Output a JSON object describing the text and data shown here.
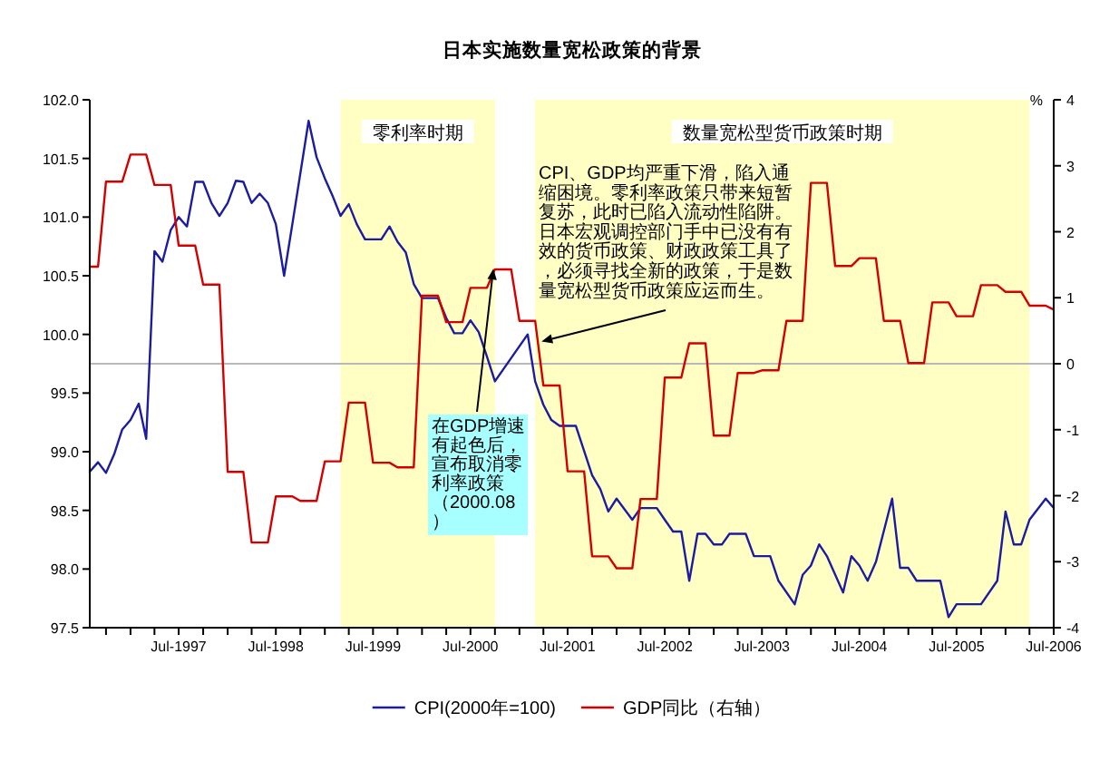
{
  "chart_data": {
    "type": "line",
    "title": "日本实施数量宽松政策的背景",
    "y2label": "%",
    "xlim": [
      "1996-08",
      "2006-07"
    ],
    "xticks": [
      {
        "value": "1996-10",
        "label": null
      },
      {
        "value": "1997-01",
        "label": null
      },
      {
        "value": "1997-04",
        "label": null
      },
      {
        "value": "1997-07",
        "label": "Jul-1997"
      },
      {
        "value": "1997-10",
        "label": null
      },
      {
        "value": "1998-01",
        "label": null
      },
      {
        "value": "1998-04",
        "label": null
      },
      {
        "value": "1998-07",
        "label": "Jul-1998"
      },
      {
        "value": "1998-10",
        "label": null
      },
      {
        "value": "1999-01",
        "label": null
      },
      {
        "value": "1999-04",
        "label": null
      },
      {
        "value": "1999-07",
        "label": "Jul-1999"
      },
      {
        "value": "1999-10",
        "label": null
      },
      {
        "value": "2000-01",
        "label": null
      },
      {
        "value": "2000-04",
        "label": null
      },
      {
        "value": "2000-07",
        "label": "Jul-2000"
      },
      {
        "value": "2000-10",
        "label": null
      },
      {
        "value": "2001-01",
        "label": null
      },
      {
        "value": "2001-04",
        "label": null
      },
      {
        "value": "2001-07",
        "label": "Jul-2001"
      },
      {
        "value": "2001-10",
        "label": null
      },
      {
        "value": "2002-01",
        "label": null
      },
      {
        "value": "2002-04",
        "label": null
      },
      {
        "value": "2002-07",
        "label": "Jul-2002"
      },
      {
        "value": "2002-10",
        "label": null
      },
      {
        "value": "2003-01",
        "label": null
      },
      {
        "value": "2003-04",
        "label": null
      },
      {
        "value": "2003-07",
        "label": "Jul-2003"
      },
      {
        "value": "2003-10",
        "label": null
      },
      {
        "value": "2004-01",
        "label": null
      },
      {
        "value": "2004-04",
        "label": null
      },
      {
        "value": "2004-07",
        "label": "Jul-2004"
      },
      {
        "value": "2004-10",
        "label": null
      },
      {
        "value": "2005-01",
        "label": null
      },
      {
        "value": "2005-04",
        "label": null
      },
      {
        "value": "2005-07",
        "label": "Jul-2005"
      },
      {
        "value": "2005-10",
        "label": null
      },
      {
        "value": "2006-01",
        "label": null
      },
      {
        "value": "2006-04",
        "label": null
      },
      {
        "value": "2006-07",
        "label": "Jul-2006"
      }
    ],
    "ylim": [
      97.5,
      102.0
    ],
    "yticks": [
      97.5,
      {
        "value": 98,
        "label": "98.0"
      },
      98.5,
      {
        "value": 99,
        "label": "99.0"
      },
      99.5,
      {
        "value": 100,
        "label": "100.0"
      },
      100.5,
      {
        "value": 101,
        "label": "101.0"
      },
      101.5,
      {
        "value": 102,
        "label": "102.0"
      }
    ],
    "y2lim": [
      -4,
      4
    ],
    "y2ticks": [
      -4,
      -3,
      -2,
      -1,
      0,
      1,
      2,
      3,
      4
    ],
    "legend": "bottom",
    "bands": [
      {
        "axis": "x",
        "from": "1999-03",
        "to": "2000-10",
        "label": "零利率时期",
        "color": "#ffffc4"
      },
      {
        "axis": "x",
        "from": "2001-03",
        "to": "2006-04",
        "label": "数量宽松型货币政策时期",
        "color": "#ffffc4"
      }
    ],
    "ref_lines": [
      {
        "axis": "y2",
        "value": 0,
        "color": "#b8b8b8"
      }
    ],
    "annotations": [
      {
        "text": "CPI、GDP均严重下滑，陷入通缩困境。零利率政策只带来短暂复苏，此时已陷入流动性陷阱。日本宏观调控部门手中已没有有效的货币政策、财政政策工具了，必须寻找全新的政策，于是数量宽松型货币政策应运而生。",
        "x": "2001-03-25",
        "y": 99.94
      },
      {
        "text": "在GDP增速有起色后，宣布取消零利率政策（2000.08）",
        "x": "2000-09-25",
        "y": 100.56
      }
    ],
    "series": [
      {
        "name": "CPI(2000年=100)",
        "color": "#1c1ca0",
        "x": [
          "1996-08",
          "1996-09",
          "1996-10",
          "1996-11",
          "1996-12",
          "1997-01",
          "1997-02",
          "1997-03",
          "1997-04",
          "1997-05",
          "1997-06",
          "1997-07",
          "1997-08",
          "1997-09",
          "1997-10",
          "1997-11",
          "1997-12",
          "1998-01",
          "1998-02",
          "1998-03",
          "1998-04",
          "1998-05",
          "1998-06",
          "1998-07",
          "1998-08",
          "1998-09",
          "1998-11",
          "1998-12",
          "1999-01",
          "1999-02",
          "1999-03",
          "1999-04",
          "1999-05",
          "1999-06",
          "1999-08",
          "1999-09",
          "1999-10",
          "1999-11",
          "1999-12",
          "2000-01",
          "2000-03",
          "2000-04",
          "2000-05",
          "2000-06",
          "2000-07",
          "2000-08",
          "2000-09",
          "2000-10",
          "2001-02",
          "2001-03",
          "2001-04",
          "2001-05",
          "2001-06",
          "2001-08",
          "2001-10",
          "2001-11",
          "2001-12",
          "2002-01",
          "2002-03",
          "2002-04",
          "2002-06",
          "2002-07",
          "2002-08",
          "2002-09",
          "2002-10",
          "2002-11",
          "2002-12",
          "2003-01",
          "2003-02",
          "2003-03",
          "2003-05",
          "2003-06",
          "2003-08",
          "2003-09",
          "2003-11",
          "2003-12",
          "2004-01",
          "2004-02",
          "2004-03",
          "2004-05",
          "2004-06",
          "2004-07",
          "2004-08",
          "2004-09",
          "2004-11",
          "2004-12",
          "2005-01",
          "2005-02",
          "2005-05",
          "2005-06",
          "2005-07",
          "2005-10",
          "2005-12",
          "2006-01",
          "2006-02",
          "2006-03",
          "2006-04",
          "2006-06",
          "2006-07"
        ],
        "values": [
          98.83,
          98.91,
          98.82,
          98.98,
          99.19,
          99.27,
          99.41,
          99.11,
          100.71,
          100.62,
          100.89,
          101.0,
          100.92,
          101.3,
          101.3,
          101.12,
          101.01,
          101.12,
          101.31,
          101.3,
          101.12,
          101.2,
          101.12,
          100.94,
          100.5,
          100.94,
          101.82,
          101.51,
          101.33,
          101.17,
          101.01,
          101.11,
          100.94,
          100.81,
          100.81,
          100.92,
          100.79,
          100.7,
          100.43,
          100.31,
          100.31,
          100.14,
          100.01,
          100.01,
          100.12,
          100.02,
          99.81,
          99.6,
          100.0,
          99.6,
          99.4,
          99.27,
          99.22,
          99.22,
          98.8,
          98.68,
          98.49,
          98.6,
          98.42,
          98.52,
          98.52,
          98.42,
          98.32,
          98.32,
          97.9,
          98.3,
          98.3,
          98.21,
          98.21,
          98.3,
          98.3,
          98.11,
          98.11,
          97.9,
          97.7,
          97.95,
          98.03,
          98.21,
          98.11,
          97.8,
          98.11,
          98.03,
          97.9,
          98.06,
          98.6,
          98.01,
          98.01,
          97.9,
          97.9,
          97.59,
          97.7,
          97.7,
          97.9,
          98.49,
          98.21,
          98.21,
          98.42,
          98.6,
          98.52
        ]
      },
      {
        "name": "GDP同比（右轴）",
        "color": "#d40000",
        "axis": "y2",
        "x": [
          "1996-08",
          "1996-09",
          "1996-10",
          "1996-12",
          "1997-01",
          "1997-03",
          "1997-04",
          "1997-06",
          "1997-07",
          "1997-09",
          "1997-10",
          "1997-12",
          "1998-01",
          "1998-03",
          "1998-04",
          "1998-06",
          "1998-07",
          "1998-09",
          "1998-10",
          "1998-12",
          "1999-01",
          "1999-03",
          "1999-04",
          "1999-06",
          "1999-07",
          "1999-09",
          "1999-10",
          "1999-12",
          "2000-01",
          "2000-03",
          "2000-04",
          "2000-06",
          "2000-07",
          "2000-09",
          "2000-10",
          "2000-12",
          "2001-01",
          "2001-03",
          "2001-04",
          "2001-06",
          "2001-07",
          "2001-09",
          "2001-10",
          "2001-12",
          "2002-01",
          "2002-03",
          "2002-04",
          "2002-06",
          "2002-07",
          "2002-09",
          "2002-10",
          "2002-12",
          "2003-01",
          "2003-03",
          "2003-04",
          "2003-06",
          "2003-07",
          "2003-09",
          "2003-10",
          "2003-12",
          "2004-01",
          "2004-03",
          "2004-04",
          "2004-06",
          "2004-07",
          "2004-09",
          "2004-10",
          "2004-12",
          "2005-01",
          "2005-03",
          "2005-04",
          "2005-06",
          "2005-07",
          "2005-09",
          "2005-10",
          "2005-12",
          "2006-01",
          "2006-03",
          "2006-04",
          "2006-06",
          "2006-07"
        ],
        "values": [
          1.47,
          1.47,
          2.76,
          2.76,
          3.17,
          3.17,
          2.71,
          2.71,
          1.79,
          1.79,
          1.2,
          1.2,
          -1.64,
          -1.64,
          -2.71,
          -2.71,
          -2.01,
          -2.01,
          -2.08,
          -2.08,
          -1.48,
          -1.48,
          -0.59,
          -0.59,
          -1.5,
          -1.5,
          -1.57,
          -1.57,
          1.03,
          1.03,
          0.63,
          0.63,
          1.15,
          1.15,
          1.43,
          1.43,
          0.65,
          0.65,
          -0.33,
          -0.33,
          -1.63,
          -1.63,
          -2.92,
          -2.92,
          -3.1,
          -3.1,
          -2.05,
          -2.05,
          -0.21,
          -0.21,
          0.31,
          0.31,
          -1.09,
          -1.09,
          -0.14,
          -0.14,
          -0.1,
          -0.1,
          0.65,
          0.65,
          2.74,
          2.74,
          1.48,
          1.48,
          1.6,
          1.6,
          0.65,
          0.65,
          0.01,
          0.01,
          0.93,
          0.93,
          0.72,
          0.72,
          1.19,
          1.19,
          1.09,
          1.09,
          0.88,
          0.88,
          0.82
        ]
      }
    ]
  }
}
